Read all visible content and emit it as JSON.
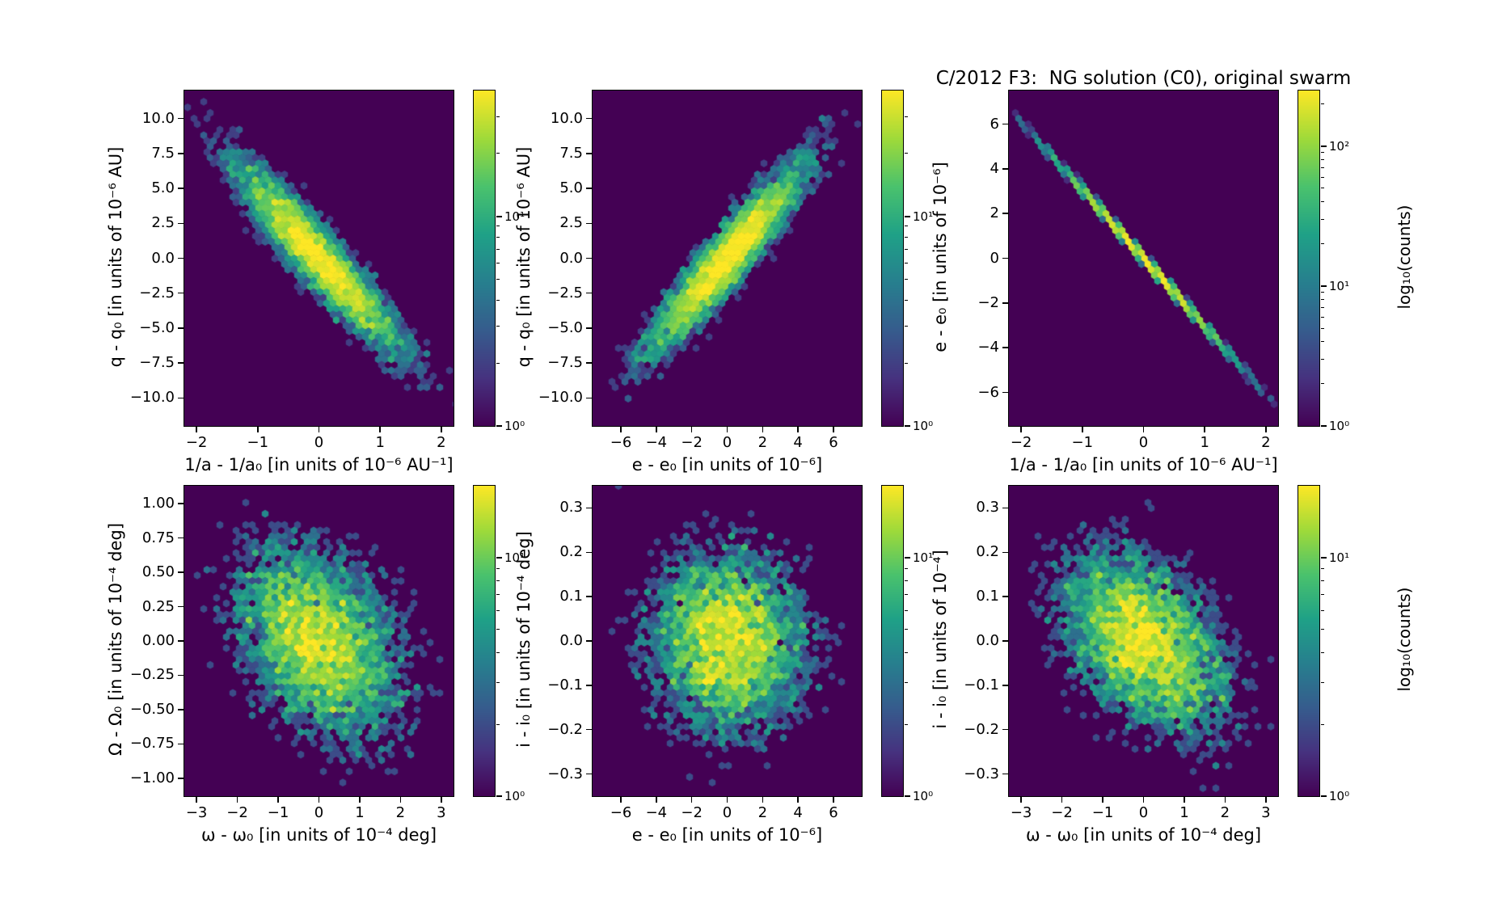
{
  "figure": {
    "title": "C/2012 F3:  NG solution (C0), original swarm"
  },
  "colormap": {
    "name": "viridis",
    "zero_color": "#440154",
    "stops": [
      "#440154",
      "#46327f",
      "#365c8d",
      "#277f8e",
      "#1fa187",
      "#4ac26d",
      "#9fda3a",
      "#fde725"
    ]
  },
  "chart_data": [
    {
      "name": "q-vs-inverse-a",
      "type": "hexbin",
      "xlabel": "1/a - 1/a₀ [in units of 10⁻⁶ AU⁻¹]",
      "ylabel": "q - q₀ [in units of 10⁻⁶ AU]",
      "xlim": [
        -2.2,
        2.2
      ],
      "ylim": [
        -12,
        12
      ],
      "xticks": [
        -2,
        -1,
        0,
        1,
        2
      ],
      "xtick_labels": [
        "−2",
        "−1",
        "0",
        "1",
        "2"
      ],
      "yticks": [
        10,
        7.5,
        5,
        2.5,
        0,
        -2.5,
        -5,
        -7.5,
        -10
      ],
      "ytick_labels": [
        "10.0",
        "7.5",
        "5.0",
        "2.5",
        "0.0",
        "−2.5",
        "−5.0",
        "−7.5",
        "−10.0"
      ],
      "colorbar": {
        "scale": "log",
        "vmin": 1,
        "vmax": 40,
        "tick_values": [
          1,
          10
        ],
        "tick_labels": [
          "10⁰",
          "10¹"
        ],
        "label": ""
      },
      "distribution": {
        "kind": "gaussian2d",
        "n": 6000,
        "mean": [
          0,
          0
        ],
        "sigma": [
          0.7,
          3.5
        ],
        "corr": -0.93
      }
    },
    {
      "name": "q-vs-e",
      "type": "hexbin",
      "xlabel": "e - e₀ [in units of 10⁻⁶]",
      "ylabel": "q - q₀ [in units of 10⁻⁶ AU]",
      "xlim": [
        -7.6,
        7.6
      ],
      "ylim": [
        -12,
        12
      ],
      "xticks": [
        -6,
        -4,
        -2,
        0,
        2,
        4,
        6
      ],
      "xtick_labels": [
        "−6",
        "−4",
        "−2",
        "0",
        "2",
        "4",
        "6"
      ],
      "yticks": [
        10,
        7.5,
        5,
        2.5,
        0,
        -2.5,
        -5,
        -7.5,
        -10
      ],
      "ytick_labels": [
        "10.0",
        "7.5",
        "5.0",
        "2.5",
        "0.0",
        "−2.5",
        "−5.0",
        "−7.5",
        "−10.0"
      ],
      "colorbar": {
        "scale": "log",
        "vmin": 1,
        "vmax": 40,
        "tick_values": [
          1,
          10
        ],
        "tick_labels": [
          "10⁰",
          "10¹"
        ],
        "label": ""
      },
      "distribution": {
        "kind": "gaussian2d",
        "n": 6000,
        "mean": [
          0,
          0
        ],
        "sigma": [
          2.3,
          3.5
        ],
        "corr": 0.93
      }
    },
    {
      "name": "e-vs-inverse-a",
      "type": "hexbin",
      "xlabel": "1/a - 1/a₀ [in units of 10⁻⁶ AU⁻¹]",
      "ylabel": "e - e₀ [in units of 10⁻⁶]",
      "xlim": [
        -2.2,
        2.2
      ],
      "ylim": [
        -7.5,
        7.5
      ],
      "xticks": [
        -2,
        -1,
        0,
        1,
        2
      ],
      "xtick_labels": [
        "−2",
        "−1",
        "0",
        "1",
        "2"
      ],
      "yticks": [
        6,
        4,
        2,
        0,
        -2,
        -4,
        -6
      ],
      "ytick_labels": [
        "6",
        "4",
        "2",
        "0",
        "−2",
        "−4",
        "−6"
      ],
      "colorbar": {
        "scale": "log",
        "vmin": 1,
        "vmax": 250,
        "tick_values": [
          1,
          10,
          100
        ],
        "tick_labels": [
          "10⁰",
          "10¹",
          "10²"
        ],
        "label": "log₁₀(counts)"
      },
      "distribution": {
        "kind": "gaussian2d",
        "n": 6000,
        "mean": [
          0,
          0
        ],
        "sigma": [
          0.7,
          2.14
        ],
        "corr": -0.9995
      }
    },
    {
      "name": "Omega-vs-omega",
      "type": "hexbin",
      "xlabel": "ω - ω₀ [in units of 10⁻⁴ deg]",
      "ylabel": "Ω - Ω₀ [in units of 10⁻⁴ deg]",
      "xlim": [
        -3.3,
        3.3
      ],
      "ylim": [
        -1.13,
        1.13
      ],
      "xticks": [
        -3,
        -2,
        -1,
        0,
        1,
        2,
        3
      ],
      "xtick_labels": [
        "−3",
        "−2",
        "−1",
        "0",
        "1",
        "2",
        "3"
      ],
      "yticks": [
        1,
        0.75,
        0.5,
        0.25,
        0,
        -0.25,
        -0.5,
        -0.75,
        -1
      ],
      "ytick_labels": [
        "1.00",
        "0.75",
        "0.50",
        "0.25",
        "0.00",
        "−0.25",
        "−0.50",
        "−0.75",
        "−1.00"
      ],
      "colorbar": {
        "scale": "log",
        "vmin": 1,
        "vmax": 20,
        "tick_values": [
          1,
          10
        ],
        "tick_labels": [
          "10⁰",
          "10¹"
        ],
        "label": ""
      },
      "distribution": {
        "kind": "gaussian2d",
        "n": 6000,
        "mean": [
          0,
          0
        ],
        "sigma": [
          1.05,
          0.37
        ],
        "corr": -0.35
      }
    },
    {
      "name": "i-vs-e",
      "type": "hexbin",
      "xlabel": "e - e₀ [in units of 10⁻⁶]",
      "ylabel": "i - i₀ [in units of 10⁻⁴ deg]",
      "xlim": [
        -7.6,
        7.6
      ],
      "ylim": [
        -0.35,
        0.35
      ],
      "xticks": [
        -6,
        -4,
        -2,
        0,
        2,
        4,
        6
      ],
      "xtick_labels": [
        "−6",
        "−4",
        "−2",
        "0",
        "2",
        "4",
        "6"
      ],
      "yticks": [
        0.3,
        0.2,
        0.1,
        0,
        -0.1,
        -0.2,
        -0.3
      ],
      "ytick_labels": [
        "0.3",
        "0.2",
        "0.1",
        "0.0",
        "−0.1",
        "−0.2",
        "−0.3"
      ],
      "colorbar": {
        "scale": "log",
        "vmin": 1,
        "vmax": 20,
        "tick_values": [
          1,
          10
        ],
        "tick_labels": [
          "10⁰",
          "10¹"
        ],
        "label": ""
      },
      "distribution": {
        "kind": "gaussian2d",
        "n": 6000,
        "mean": [
          0,
          0
        ],
        "sigma": [
          2.3,
          0.107
        ],
        "corr": -0.05
      }
    },
    {
      "name": "i-vs-omega",
      "type": "hexbin",
      "xlabel": "ω - ω₀ [in units of 10⁻⁴ deg]",
      "ylabel": "i - i₀ [in units of 10⁻⁴]",
      "xlim": [
        -3.3,
        3.3
      ],
      "ylim": [
        -0.35,
        0.35
      ],
      "xticks": [
        -3,
        -2,
        -1,
        0,
        1,
        2,
        3
      ],
      "xtick_labels": [
        "−3",
        "−2",
        "−1",
        "0",
        "1",
        "2",
        "3"
      ],
      "yticks": [
        0.3,
        0.2,
        0.1,
        0,
        -0.1,
        -0.2,
        -0.3
      ],
      "ytick_labels": [
        "0.3",
        "0.2",
        "0.1",
        "0.0",
        "−0.1",
        "−0.2",
        "−0.3"
      ],
      "colorbar": {
        "scale": "log",
        "vmin": 1,
        "vmax": 20,
        "tick_values": [
          1,
          10
        ],
        "tick_labels": [
          "10⁰",
          "10¹"
        ],
        "label": "log₁₀(counts)"
      },
      "distribution": {
        "kind": "gaussian2d",
        "n": 6000,
        "mean": [
          0,
          0
        ],
        "sigma": [
          1.05,
          0.107
        ],
        "corr": -0.42
      }
    }
  ]
}
